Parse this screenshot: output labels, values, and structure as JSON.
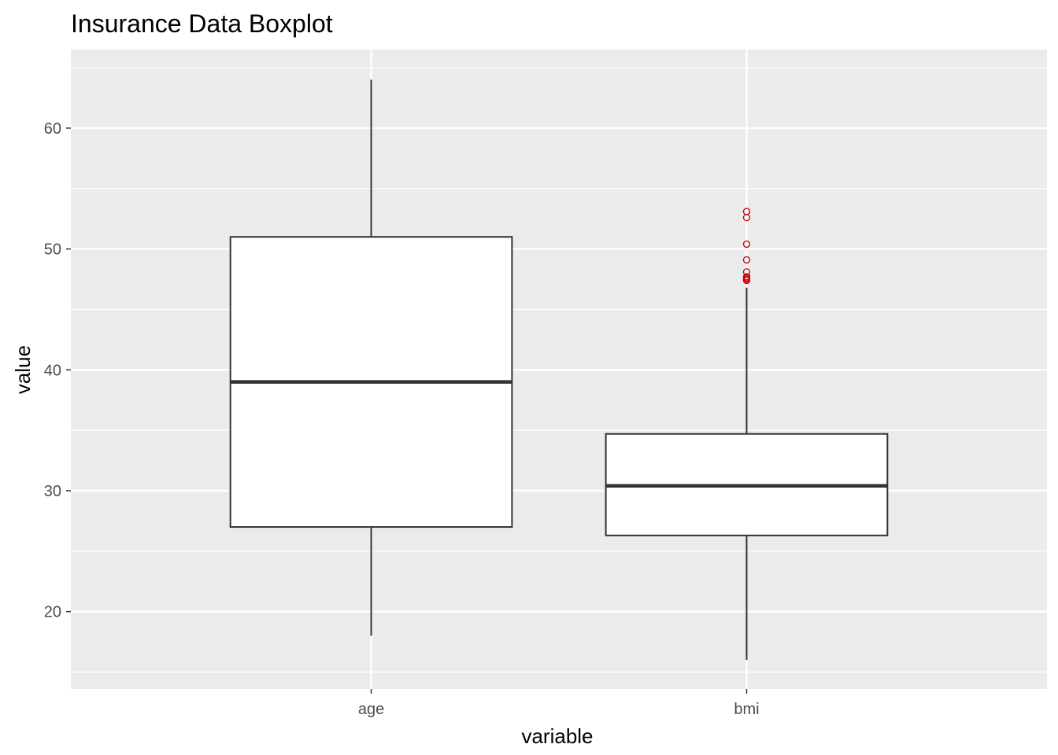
{
  "chart_data": {
    "type": "boxplot",
    "title": "Insurance Data Boxplot",
    "xlabel": "variable",
    "ylabel": "value",
    "ylim": [
      13.6,
      66.5
    ],
    "yticks": [
      20,
      30,
      40,
      50,
      60
    ],
    "grid": true,
    "background_color": "#ebebeb",
    "outlier_color": "#cc0000",
    "categories": [
      "age",
      "bmi"
    ],
    "boxes": [
      {
        "category": "age",
        "whisker_low": 18,
        "q1": 27,
        "median": 39,
        "q3": 51,
        "whisker_high": 64,
        "outliers": []
      },
      {
        "category": "bmi",
        "whisker_low": 16,
        "q1": 26.3,
        "median": 30.4,
        "q3": 34.7,
        "whisker_high": 46.8,
        "outliers": [
          47.4,
          47.5,
          47.6,
          47.7,
          48.1,
          49.1,
          50.4,
          52.6,
          53.1
        ]
      }
    ]
  }
}
